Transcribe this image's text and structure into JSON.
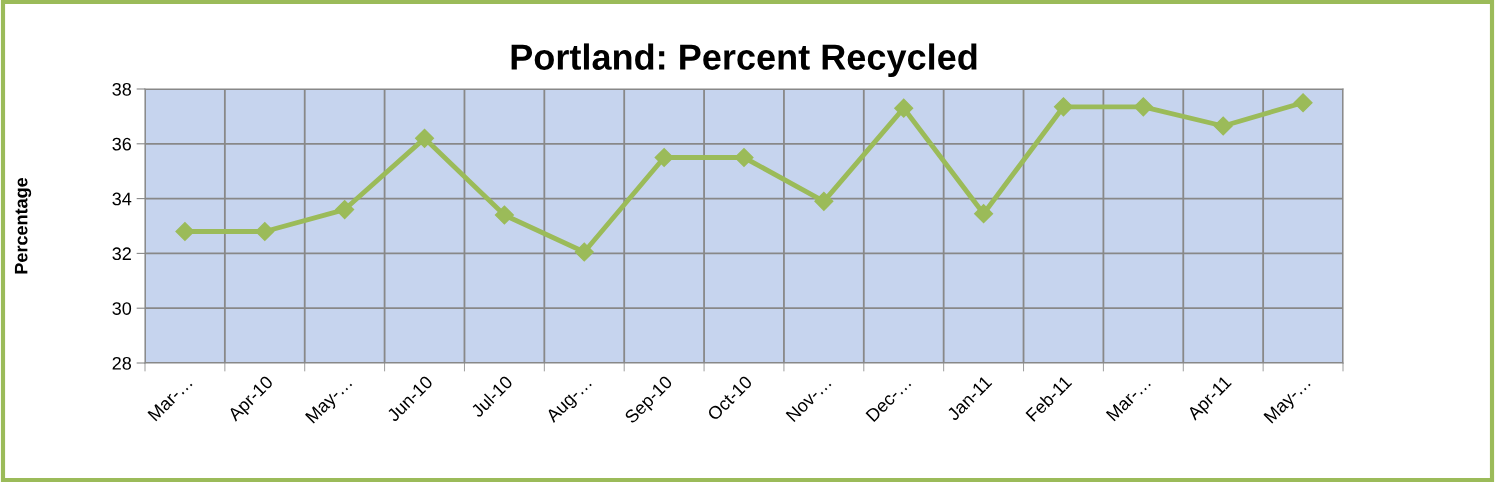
{
  "chart_data": {
    "type": "line",
    "title": "Portland: Percent Recycled",
    "ylabel": "Percentage",
    "categories": [
      "Mar-…",
      "Apr-10",
      "May-…",
      "Jun-10",
      "Jul-10",
      "Aug-…",
      "Sep-10",
      "Oct-10",
      "Nov-…",
      "Dec-…",
      "Jan-11",
      "Feb-11",
      "Mar-…",
      "Apr-11",
      "May-…"
    ],
    "series": [
      {
        "color": "#9bbb59",
        "values": [
          32.8,
          32.8,
          33.6,
          36.2,
          33.4,
          32.05,
          35.5,
          35.5,
          33.9,
          37.3,
          33.45,
          37.35,
          37.35,
          36.65,
          37.5
        ]
      }
    ],
    "ylim": [
      28,
      38
    ],
    "yticks": [
      28,
      30,
      32,
      34,
      36,
      38
    ],
    "grid": true,
    "marker": "diamond",
    "line_style": "solid",
    "legend": false
  }
}
